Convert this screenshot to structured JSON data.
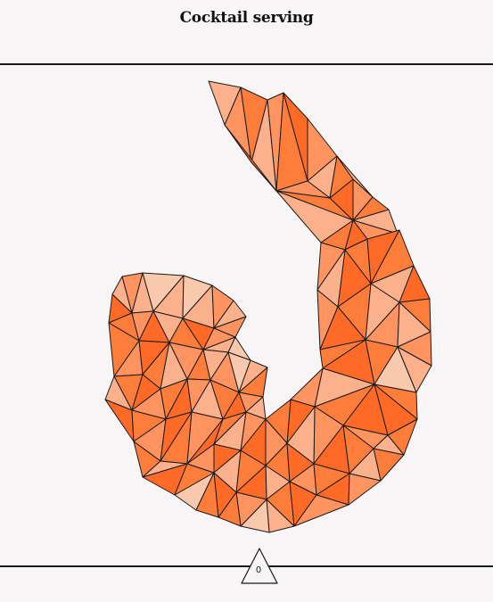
{
  "header": {
    "title": "Cocktail serving"
  },
  "footer": {
    "counter_value": "0"
  },
  "colors": {
    "background": "#f7f5f6",
    "rule": "#1a1a1a",
    "outline": "#1a1a1a",
    "piece_dark": "#ff6a26",
    "piece_mid": "#ff7d3a",
    "piece_warm": "#ff9460",
    "piece_light": "#fbb28c",
    "piece_pale": "#f9c9ae"
  },
  "puzzle": {
    "subject": "shrimp",
    "style": "low-poly triangle mosaic"
  }
}
